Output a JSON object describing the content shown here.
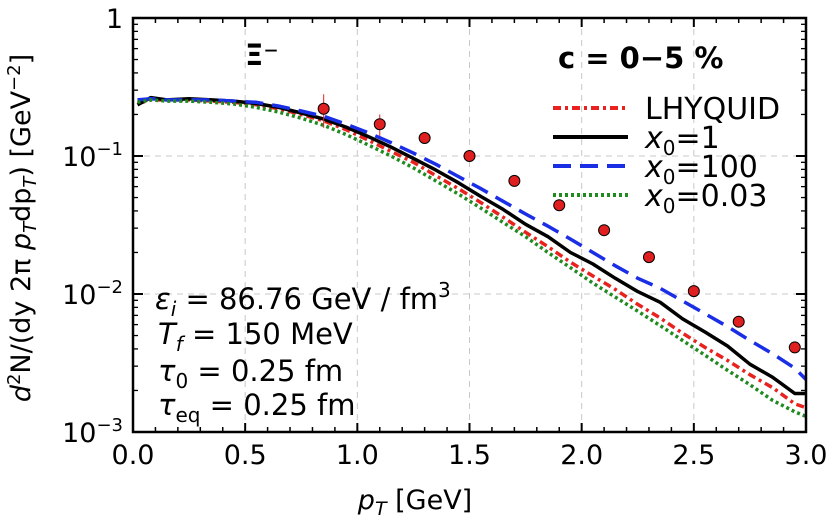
{
  "chart_data": {
    "type": "line",
    "title": "",
    "xlabel": "p_T [GeV]",
    "ylabel": "d²N/(dy 2π p_T dp_T) [GeV⁻²]",
    "xlim": [
      0,
      3
    ],
    "ylim": [
      0.001,
      1
    ],
    "yscale": "log",
    "grid": true,
    "legend_position": "top-right",
    "x_ticks": [
      "0.0",
      "0.5",
      "1.0",
      "1.5",
      "2.0",
      "2.5",
      "3.0"
    ],
    "y_ticks": [
      {
        "base": "10",
        "exp": "−3"
      },
      {
        "base": "10",
        "exp": "−2"
      },
      {
        "base": "10",
        "exp": "−1"
      },
      {
        "base": "1",
        "exp": ""
      }
    ],
    "particle": "Ξ⁻",
    "centrality": "c = 0−5 %",
    "annotations": {
      "eps": {
        "sym": "ε",
        "sub": "i",
        "rest": " = 86.76 GeV / fm",
        "sup": "3"
      },
      "tf": {
        "sym": "T",
        "sub": "f",
        "rest": " = 150 MeV"
      },
      "tau0": {
        "sym": "τ",
        "sub": "0",
        "rest": " = 0.25 fm"
      },
      "taueq": {
        "sym": "τ",
        "sub": "eq",
        "rest": " = 0.25 fm"
      }
    },
    "series": [
      {
        "name": "LHYQUID",
        "color": "#e8221e",
        "dash": "8 4 3 4",
        "x": [
          0.02,
          0.08,
          0.15,
          0.25,
          0.35,
          0.45,
          0.55,
          0.65,
          0.75,
          0.85,
          0.95,
          1.05,
          1.15,
          1.25,
          1.35,
          1.45,
          1.55,
          1.65,
          1.75,
          1.85,
          1.95,
          2.05,
          2.15,
          2.25,
          2.35,
          2.45,
          2.55,
          2.65,
          2.75,
          2.85,
          2.95,
          3.0
        ],
        "y": [
          0.24,
          0.255,
          0.255,
          0.255,
          0.25,
          0.245,
          0.235,
          0.22,
          0.2,
          0.18,
          0.155,
          0.13,
          0.108,
          0.09,
          0.072,
          0.058,
          0.046,
          0.036,
          0.028,
          0.022,
          0.017,
          0.0135,
          0.0108,
          0.0084,
          0.0067,
          0.0052,
          0.0041,
          0.0033,
          0.0026,
          0.0021,
          0.0016,
          0.0015
        ]
      },
      {
        "name": "x₀=1",
        "color": "#000000",
        "dash": "",
        "x": [
          0.02,
          0.08,
          0.15,
          0.25,
          0.35,
          0.45,
          0.55,
          0.65,
          0.75,
          0.85,
          0.95,
          1.05,
          1.15,
          1.25,
          1.35,
          1.45,
          1.55,
          1.65,
          1.75,
          1.85,
          1.95,
          2.05,
          2.15,
          2.25,
          2.35,
          2.45,
          2.55,
          2.65,
          2.75,
          2.85,
          2.95,
          3.0
        ],
        "y": [
          0.235,
          0.265,
          0.255,
          0.26,
          0.255,
          0.25,
          0.24,
          0.225,
          0.205,
          0.185,
          0.162,
          0.138,
          0.116,
          0.096,
          0.079,
          0.064,
          0.051,
          0.041,
          0.032,
          0.026,
          0.02,
          0.0165,
          0.013,
          0.0104,
          0.0087,
          0.0066,
          0.0053,
          0.0042,
          0.0031,
          0.0025,
          0.0019,
          0.0019
        ]
      },
      {
        "name": "x₀=100",
        "color": "#1a2ee6",
        "dash": "18 9",
        "x": [
          0.02,
          0.08,
          0.15,
          0.25,
          0.35,
          0.45,
          0.55,
          0.65,
          0.75,
          0.85,
          0.95,
          1.05,
          1.15,
          1.25,
          1.35,
          1.45,
          1.55,
          1.65,
          1.75,
          1.85,
          1.95,
          2.05,
          2.15,
          2.25,
          2.35,
          2.45,
          2.55,
          2.65,
          2.75,
          2.85,
          2.95,
          3.0
        ],
        "y": [
          0.255,
          0.26,
          0.255,
          0.255,
          0.255,
          0.25,
          0.245,
          0.23,
          0.212,
          0.194,
          0.17,
          0.147,
          0.125,
          0.105,
          0.087,
          0.071,
          0.058,
          0.047,
          0.038,
          0.031,
          0.025,
          0.02,
          0.016,
          0.013,
          0.011,
          0.0089,
          0.0072,
          0.0058,
          0.0046,
          0.0037,
          0.0029,
          0.0024
        ]
      },
      {
        "name": "x₀=0.03",
        "color": "#1f8a1f",
        "dash": "3 3",
        "x": [
          0.02,
          0.08,
          0.15,
          0.25,
          0.35,
          0.45,
          0.55,
          0.65,
          0.75,
          0.85,
          0.95,
          1.05,
          1.15,
          1.25,
          1.35,
          1.45,
          1.55,
          1.65,
          1.75,
          1.85,
          1.95,
          2.05,
          2.15,
          2.25,
          2.35,
          2.45,
          2.55,
          2.65,
          2.75,
          2.85,
          2.95,
          3.0
        ],
        "y": [
          0.245,
          0.255,
          0.25,
          0.25,
          0.245,
          0.238,
          0.225,
          0.208,
          0.188,
          0.167,
          0.143,
          0.12,
          0.1,
          0.082,
          0.066,
          0.053,
          0.042,
          0.033,
          0.026,
          0.02,
          0.0155,
          0.012,
          0.0095,
          0.0075,
          0.0059,
          0.0046,
          0.0036,
          0.0028,
          0.0022,
          0.0017,
          0.0014,
          0.0013
        ]
      }
    ],
    "data_points": {
      "marker": "circle",
      "color": "#e02020",
      "x": [
        0.85,
        1.1,
        1.3,
        1.5,
        1.7,
        1.9,
        2.1,
        2.3,
        2.5,
        2.7,
        2.95
      ],
      "y": [
        0.22,
        0.17,
        0.135,
        0.1,
        0.066,
        0.044,
        0.029,
        0.0185,
        0.0105,
        0.0063,
        0.0041
      ],
      "err": [
        0.06,
        0.03,
        0.0,
        0.0,
        0.0,
        0.0,
        0.0,
        0.0,
        0.0,
        0.0,
        0.0
      ]
    }
  }
}
